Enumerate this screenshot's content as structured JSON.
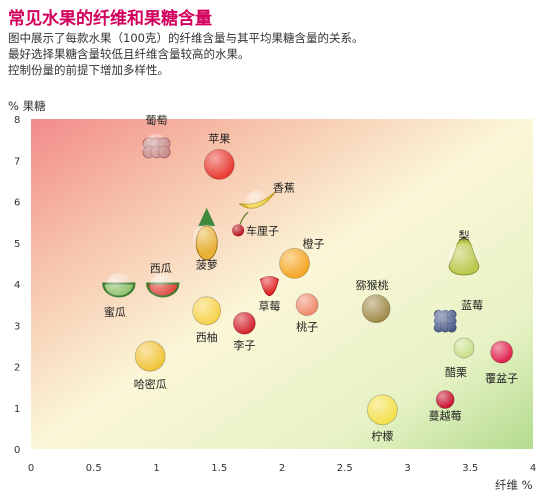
{
  "chart_data": {
    "type": "scatter",
    "title": "常见水果的纤维和果糖含量",
    "description": [
      "图中展示了每款水果（100克）的纤维含量与其平均果糖含量的关系。",
      "最好选择果糖含量较低且纤维含量较高的水果。",
      "控制份量的前提下增加多样性。"
    ],
    "xlabel": "纤维 %",
    "ylabel": "% 果糖",
    "xlim": [
      0,
      4
    ],
    "ylim": [
      0,
      8
    ],
    "xticks": [
      "0",
      "0.5",
      "1",
      "1.5",
      "2",
      "2.5",
      "3",
      "3.5",
      "4"
    ],
    "yticks": [
      "0",
      "1",
      "2",
      "3",
      "4",
      "5",
      "6",
      "7",
      "8"
    ],
    "background": "gradient: red (top-left) to yellow to green (bottom-right)",
    "points": [
      {
        "name": "葡萄",
        "x": 1.0,
        "y": 7.3,
        "color": "#c98a8a",
        "icon": "grapes-icon"
      },
      {
        "name": "苹果",
        "x": 1.5,
        "y": 6.9,
        "color": "#e8392f",
        "icon": "apple-icon"
      },
      {
        "name": "香蕉",
        "x": 1.8,
        "y": 6.0,
        "color": "#f2d23c",
        "icon": "banana-icon"
      },
      {
        "name": "车厘子",
        "x": 1.65,
        "y": 5.3,
        "color": "#b5121b",
        "icon": "cherry-icon"
      },
      {
        "name": "菠萝",
        "x": 1.4,
        "y": 5.1,
        "color": "#e8b23a",
        "icon": "pineapple-icon"
      },
      {
        "name": "橙子",
        "x": 2.1,
        "y": 4.5,
        "color": "#f5a623",
        "icon": "orange-icon"
      },
      {
        "name": "梨",
        "x": 3.45,
        "y": 4.6,
        "color": "#b9c84a",
        "icon": "pear-icon"
      },
      {
        "name": "西瓜",
        "x": 1.05,
        "y": 3.95,
        "color": "#e0443a",
        "icon": "watermelon-icon"
      },
      {
        "name": "蜜瓜",
        "x": 0.7,
        "y": 3.95,
        "color": "#8cc06a",
        "icon": "melon-icon"
      },
      {
        "name": "草莓",
        "x": 1.9,
        "y": 4.0,
        "color": "#e22a2a",
        "icon": "strawberry-icon"
      },
      {
        "name": "桃子",
        "x": 2.2,
        "y": 3.5,
        "color": "#f08a6a",
        "icon": "peach-icon"
      },
      {
        "name": "猕猴桃",
        "x": 2.75,
        "y": 3.4,
        "color": "#a08a4a",
        "icon": "kiwi-icon"
      },
      {
        "name": "西柚",
        "x": 1.4,
        "y": 3.35,
        "color": "#f6d24a",
        "icon": "grapefruit-icon"
      },
      {
        "name": "李子",
        "x": 1.7,
        "y": 3.05,
        "color": "#d2202a",
        "icon": "plum-icon"
      },
      {
        "name": "蓝莓",
        "x": 3.3,
        "y": 3.1,
        "color": "#4a5a8a",
        "icon": "blueberry-icon"
      },
      {
        "name": "醋栗",
        "x": 3.45,
        "y": 2.45,
        "color": "#c8e08a",
        "icon": "gooseberry-icon"
      },
      {
        "name": "覆盆子",
        "x": 3.75,
        "y": 2.35,
        "color": "#e0204a",
        "icon": "raspberry-icon"
      },
      {
        "name": "哈密瓜",
        "x": 0.95,
        "y": 2.25,
        "color": "#f2c43a",
        "icon": "cantaloupe-icon"
      },
      {
        "name": "柠檬",
        "x": 2.8,
        "y": 0.95,
        "color": "#f4e04a",
        "icon": "lemon-icon"
      },
      {
        "name": "蔓越莓",
        "x": 3.3,
        "y": 1.2,
        "color": "#c8102e",
        "icon": "cranberry-icon"
      }
    ]
  }
}
